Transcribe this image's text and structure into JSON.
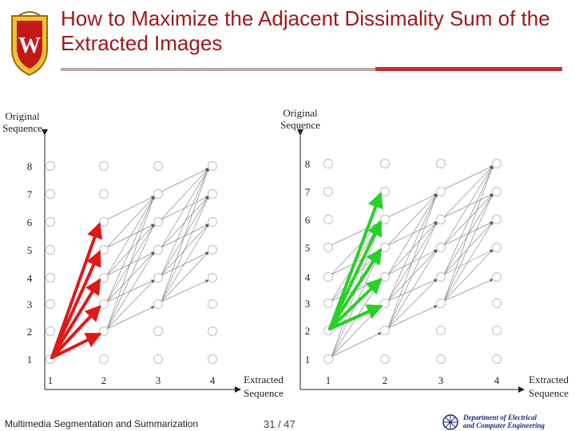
{
  "slide": {
    "title": "How to Maximize the Adjacent Dissimality Sum of the Extracted Images",
    "footer_left": "Multimedia Segmentation and Summarization",
    "page_number": "31 / 47",
    "department_line1": "Department of Electrical",
    "department_line2": "and Computer Engineering"
  },
  "diagram_left": {
    "y_axis_label_line1": "Original",
    "y_axis_label_line2": "Sequence",
    "x_axis_label_line1": "Extracted",
    "x_axis_label_line2": "Sequence",
    "y_ticks": [
      "1",
      "2",
      "3",
      "4",
      "5",
      "6",
      "7",
      "8"
    ],
    "x_ticks": [
      "1",
      "2",
      "3",
      "4"
    ],
    "highlight_color": "#e01818",
    "highlight_label": "red arrows from extracted image 1 (original 1) to extracted image 2 (original 2-6)"
  },
  "diagram_right": {
    "y_axis_label_line1": "Original",
    "y_axis_label_line2": "Sequence",
    "x_axis_label_line1": "Extracted",
    "x_axis_label_line2": "Sequence",
    "y_ticks": [
      "1",
      "2",
      "3",
      "4",
      "5",
      "6",
      "7",
      "8"
    ],
    "x_ticks": [
      "1",
      "2",
      "3",
      "4"
    ],
    "highlight_color": "#28d028",
    "highlight_label": "green arrows from extracted image 1 (original 2) to extracted image 2 (original 3-7)"
  }
}
